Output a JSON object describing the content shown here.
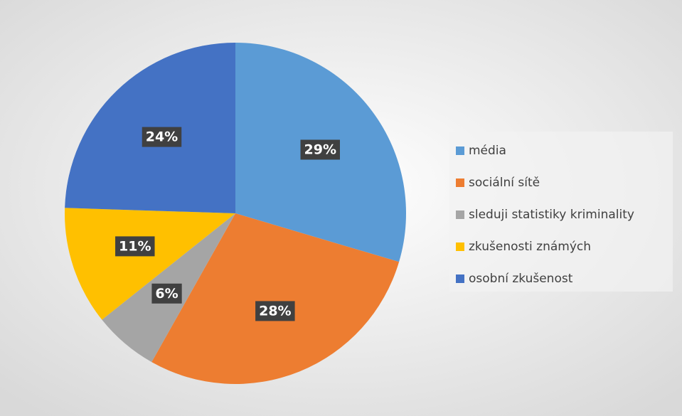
{
  "chart_data": {
    "type": "pie",
    "categories": [
      "média",
      "sociální sítě",
      "sleduji statistiky kriminality",
      "zkušenosti známých",
      "osobní zkušenost"
    ],
    "values": [
      29,
      28,
      6,
      11,
      24
    ],
    "value_labels": [
      "29%",
      "28%",
      "6%",
      "11%",
      "24%"
    ],
    "colors": [
      "#5b9bd5",
      "#ed7d31",
      "#a5a5a5",
      "#ffc000",
      "#4472c4"
    ],
    "legend": "right"
  }
}
